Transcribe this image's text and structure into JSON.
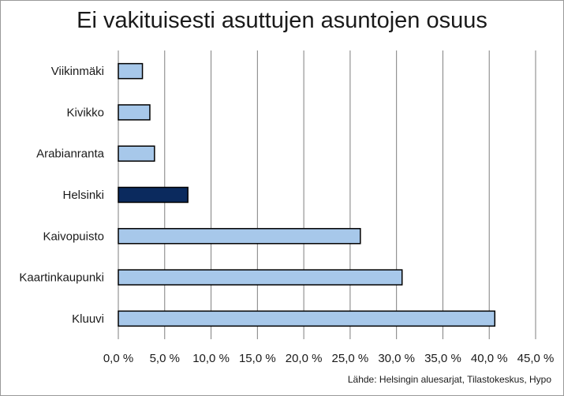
{
  "chart_data": {
    "type": "bar",
    "orientation": "horizontal",
    "title": "Ei vakituisesti asuttujen asuntojen osuus",
    "source": "Lähde: Helsingin aluesarjat, Tilastokeskus, Hypo",
    "categories": [
      "Viikinmäki",
      "Kivikko",
      "Arabianranta",
      "Helsinki",
      "Kaivopuisto",
      "Kaartinkaupunki",
      "Kluuvi"
    ],
    "values": [
      2.6,
      3.4,
      3.9,
      7.5,
      26.1,
      30.6,
      40.6
    ],
    "value_unit": "%",
    "xlim": [
      0,
      45
    ],
    "x_ticks": [
      0,
      5,
      10,
      15,
      20,
      25,
      30,
      35,
      40,
      45
    ],
    "x_tick_labels": [
      "0,0 %",
      "5,0 %",
      "10,0 %",
      "15,0 %",
      "20,0 %",
      "25,0 %",
      "30,0 %",
      "35,0 %",
      "40,0 %",
      "45,0 %"
    ],
    "grid": "vertical",
    "bar_color": "#a7c8ea",
    "highlight_color": "#0b2a5e",
    "highlight_category": "Helsinki",
    "border_color": "#000000",
    "gridline_color": "#7f7f7f"
  }
}
